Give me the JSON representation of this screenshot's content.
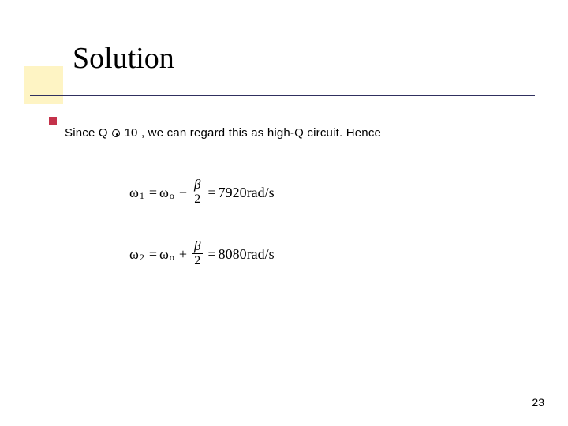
{
  "title": "Solution",
  "body": {
    "prefix": "Since Q ",
    "suffix": " 10 , we can regard this as high-Q circuit. Hence"
  },
  "equations": {
    "eq1": {
      "lhs_var": "ω",
      "lhs_sub": "1",
      "rhs_var": "ω",
      "rhs_sub": "o",
      "op": "−",
      "frac_num": "β",
      "frac_den": "2",
      "result": "7920rad/s"
    },
    "eq2": {
      "lhs_var": "ω",
      "lhs_sub": "2",
      "rhs_var": "ω",
      "rhs_sub": "o",
      "op": "+",
      "frac_num": "β",
      "frac_den": "2",
      "result": "8080rad/s"
    }
  },
  "page_number": "23",
  "colors": {
    "yellow_block": "#fef4c4",
    "underline": "#30305f",
    "accent": "#c4324a",
    "text": "#000000",
    "background": "#ffffff"
  }
}
